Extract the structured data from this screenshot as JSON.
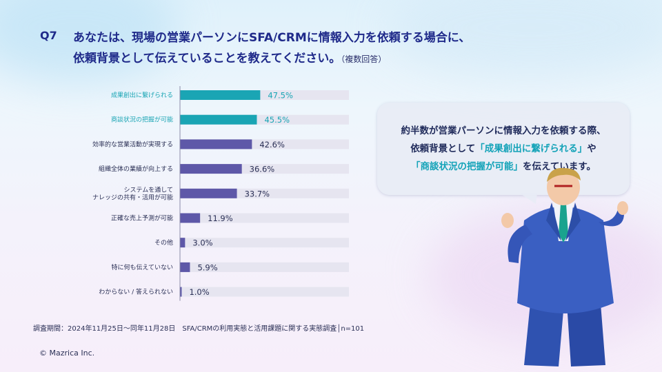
{
  "title": {
    "q_label": "Q7",
    "line1": "あなたは、現場の営業パーソンにSFA/CRMに情報入力を依頼する場合に、",
    "line2": "依頼背景として伝えていることを教えてください。",
    "note": "（複数回答）"
  },
  "colors": {
    "highlight": "#1aa5b4",
    "normal": "#5e58a8",
    "track": "#e6e5f0",
    "navy": "#1f2a8a"
  },
  "chart_data": {
    "type": "bar",
    "orientation": "horizontal",
    "categories": [
      [
        "成果創出に繋げられる"
      ],
      [
        "商談状況の把握が可能"
      ],
      [
        "効率的な営業活動が実現する"
      ],
      [
        "組織全体の業績が向上する"
      ],
      [
        "システムを通して",
        "ナレッジの共有・活用が可能"
      ],
      [
        "正確な売上予測が可能"
      ],
      [
        "その他"
      ],
      [
        "特に何も伝えていない"
      ],
      [
        "わからない / 答えられない"
      ]
    ],
    "values": [
      47.5,
      45.5,
      42.6,
      36.6,
      33.7,
      11.9,
      3.0,
      5.9,
      1.0
    ],
    "value_labels": [
      "47.5%",
      "45.5%",
      "42.6%",
      "36.6%",
      "33.7%",
      "11.9%",
      "3.0%",
      "5.9%",
      "1.0%"
    ],
    "highlighted": [
      true,
      true,
      false,
      false,
      false,
      false,
      false,
      false,
      false
    ],
    "xlim": [
      0,
      100
    ]
  },
  "bubble": {
    "line1": "約半数が営業パーソンに情報入力を依頼する際、",
    "line2_pre": "依頼背景として",
    "line2_hl": "「成果創出に繋げられる」",
    "line2_post": "や",
    "line3_hl": "「商談状況の把握が可能」",
    "line3_post": "を伝えています。"
  },
  "survey_note": "調査期間：2024年11月25日～同年11月28日　SFA/CRMの利用実態と活用課題に関する実態調査│n=101",
  "copyright": "© Mazrica Inc."
}
